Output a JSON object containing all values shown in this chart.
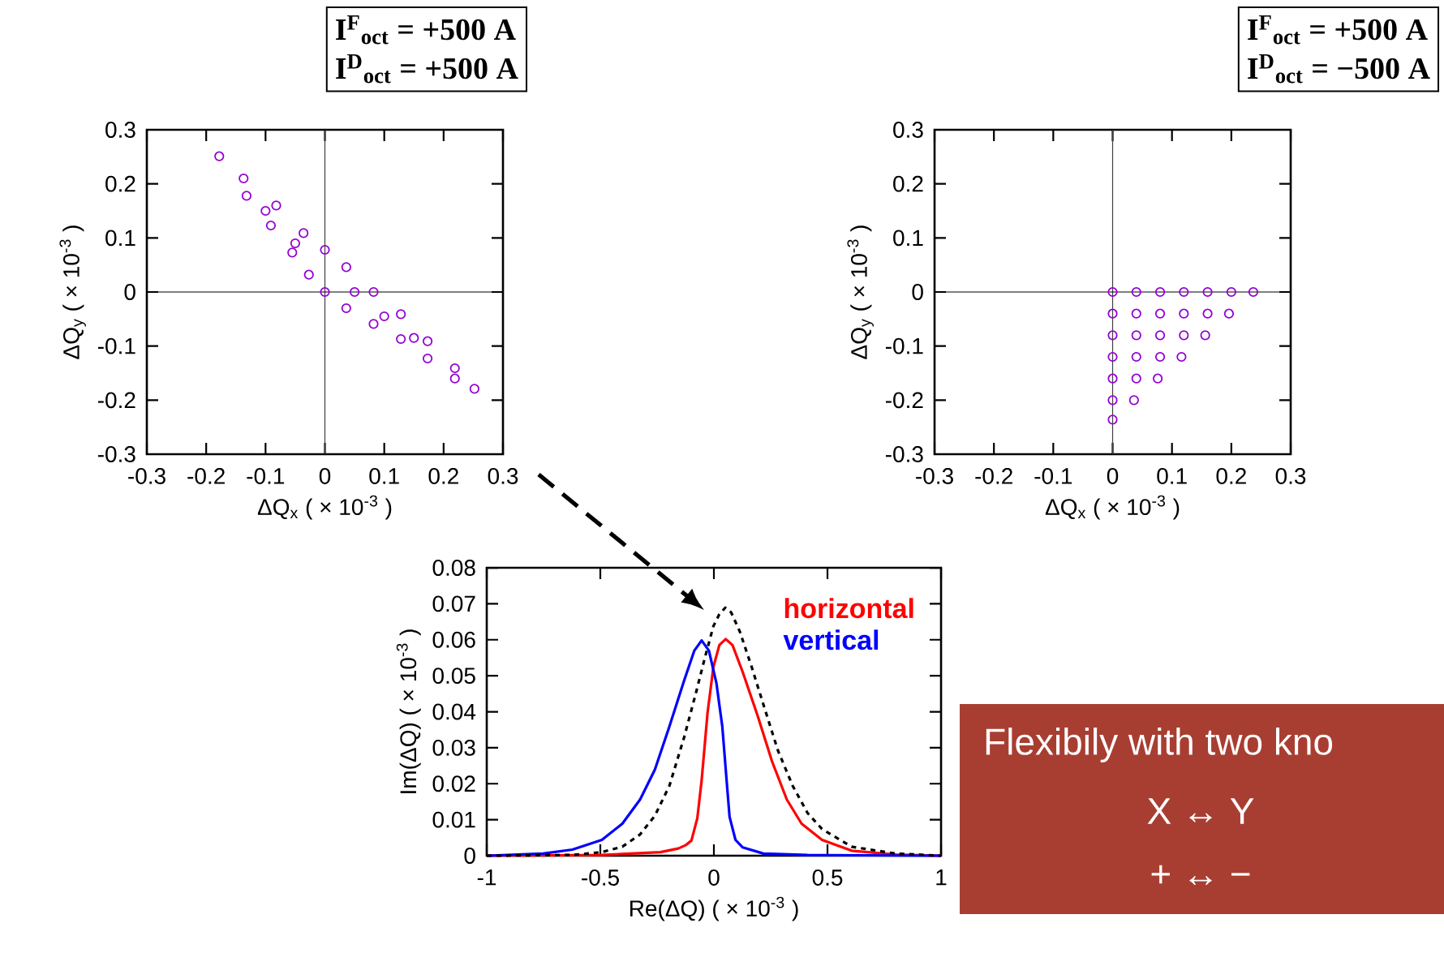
{
  "chart_data": [
    {
      "type": "scatter",
      "xlabel": "ΔQ$_{x}$  ( × 10$^{-3}$ )",
      "ylabel": "ΔQ$_{y}$  ( × 10$^{-3}$ )",
      "xlim": [
        -0.3,
        0.3
      ],
      "ylim": [
        -0.3,
        0.3
      ],
      "xticks": [
        -0.3,
        -0.2,
        -0.1,
        0,
        0.1,
        0.2,
        0.3
      ],
      "yticks": [
        -0.3,
        -0.2,
        -0.1,
        0,
        0.1,
        0.2,
        0.3
      ],
      "marker": "circle",
      "annotations": [
        "I$^{F}$$_{oct}$  =  +500 A",
        "I$^{D}$$_{oct}$  =  +500 A"
      ],
      "ref_lines": [
        {
          "axis": "x",
          "value": 0
        },
        {
          "axis": "y",
          "value": 0
        }
      ],
      "series": [
        {
          "color": "#9400d3",
          "x": [
            -0.178,
            -0.137,
            -0.082,
            -0.036,
            0.0,
            0.036,
            0.082,
            0.128,
            0.173,
            0.219,
            0.252,
            -0.132,
            -0.091,
            -0.055,
            -0.027,
            0.0,
            0.036,
            0.082,
            0.128,
            0.173,
            0.219,
            -0.1,
            -0.05,
            0.05,
            0.1,
            0.15
          ],
          "values": [
            0.251,
            0.21,
            0.16,
            0.109,
            0.078,
            0.046,
            0.0,
            -0.041,
            -0.091,
            -0.141,
            -0.179,
            0.178,
            0.123,
            0.073,
            0.032,
            0.0,
            -0.03,
            -0.059,
            -0.087,
            -0.123,
            -0.16,
            0.15,
            0.09,
            0.0,
            -0.045,
            -0.085
          ]
        }
      ]
    },
    {
      "type": "scatter",
      "xlabel": "ΔQ$_{x}$  ( × 10$^{-3}$ )",
      "ylabel": "ΔQ$_{y}$  ( × 10$^{-3}$ )",
      "xlim": [
        -0.3,
        0.3
      ],
      "ylim": [
        -0.3,
        0.3
      ],
      "xticks": [
        -0.3,
        -0.2,
        -0.1,
        0,
        0.1,
        0.2,
        0.3
      ],
      "yticks": [
        -0.3,
        -0.2,
        -0.1,
        0,
        0.1,
        0.2,
        0.3
      ],
      "marker": "circle",
      "annotations": [
        "I$^{F}$$_{oct}$  =  +500 A",
        "I$^{D}$$_{oct}$  =  −500 A"
      ],
      "ref_lines": [
        {
          "axis": "x",
          "value": 0
        },
        {
          "axis": "y",
          "value": 0
        }
      ],
      "series": [
        {
          "color": "#9400d3",
          "x": [
            0,
            0.04,
            0.08,
            0.12,
            0.16,
            0.2,
            0.237,
            0,
            0.04,
            0.08,
            0.12,
            0.16,
            0.196,
            0,
            0.04,
            0.08,
            0.12,
            0.156,
            0,
            0.04,
            0.08,
            0.116,
            0,
            0.04,
            0.076,
            0,
            0.036,
            0
          ],
          "values": [
            0,
            0,
            0,
            0,
            0,
            0,
            0,
            -0.04,
            -0.04,
            -0.04,
            -0.04,
            -0.04,
            -0.04,
            -0.08,
            -0.08,
            -0.08,
            -0.08,
            -0.08,
            -0.12,
            -0.12,
            -0.12,
            -0.12,
            -0.16,
            -0.16,
            -0.16,
            -0.2,
            -0.2,
            -0.236
          ]
        }
      ]
    },
    {
      "type": "line",
      "xlabel": "Re(ΔQ)  ( × 10$^{-3}$ )",
      "ylabel": "Im(ΔQ)  ( × 10$^{-3}$ )",
      "xlim": [
        -1,
        1
      ],
      "ylim": [
        0,
        0.08
      ],
      "xticks": [
        -1,
        -0.5,
        0,
        0.5,
        1
      ],
      "yticks": [
        0,
        0.01,
        0.02,
        0.03,
        0.04,
        0.05,
        0.06,
        0.07,
        0.08
      ],
      "marker": "none",
      "series": [
        {
          "name": "horizontal",
          "color": "#ff0000",
          "line_style": "solid",
          "x": [
            -1.0,
            -0.493,
            -0.235,
            -0.157,
            -0.125,
            -0.099,
            -0.073,
            -0.054,
            -0.028,
            -0.002,
            0.024,
            0.052,
            0.082,
            0.127,
            0.192,
            0.256,
            0.321,
            0.386,
            0.476,
            0.606,
            0.8,
            1.0
          ],
          "values": [
            0,
            0.0002,
            0.001,
            0.002,
            0.0029,
            0.0042,
            0.0104,
            0.0209,
            0.0397,
            0.0525,
            0.0585,
            0.0602,
            0.0585,
            0.051,
            0.039,
            0.0262,
            0.0156,
            0.0089,
            0.0044,
            0.0014,
            0.0003,
            0
          ]
        },
        {
          "name": "vertical",
          "color": "#0000ff",
          "line_style": "solid",
          "x": [
            -1.0,
            -0.752,
            -0.623,
            -0.493,
            -0.403,
            -0.325,
            -0.26,
            -0.196,
            -0.131,
            -0.086,
            -0.054,
            -0.022,
            0.011,
            0.037,
            0.056,
            0.069,
            0.095,
            0.127,
            0.218,
            0.412,
            1.0
          ],
          "values": [
            0,
            0.0006,
            0.0017,
            0.0044,
            0.0089,
            0.0156,
            0.0239,
            0.0359,
            0.0487,
            0.057,
            0.0598,
            0.057,
            0.048,
            0.0359,
            0.0209,
            0.0108,
            0.0044,
            0.0023,
            0.0006,
            0.0002,
            0
          ]
        },
        {
          "color": "#000000",
          "line_style": "dashed",
          "x": [
            -1.0,
            -0.623,
            -0.493,
            -0.403,
            -0.325,
            -0.26,
            -0.196,
            -0.131,
            -0.08,
            -0.041,
            -0.002,
            0.024,
            0.05,
            0.076,
            0.114,
            0.166,
            0.218,
            0.282,
            0.347,
            0.412,
            0.476,
            0.606,
            0.8,
            1.0
          ],
          "values": [
            0,
            0.0002,
            0.001,
            0.0025,
            0.0059,
            0.0111,
            0.0194,
            0.0329,
            0.045,
            0.0547,
            0.0638,
            0.0671,
            0.0689,
            0.0676,
            0.0623,
            0.0525,
            0.042,
            0.0292,
            0.0194,
            0.0119,
            0.0074,
            0.0025,
            0.0006,
            0
          ]
        }
      ]
    },
    {
      "type": "other",
      "title": "Flexibily with two kno",
      "color": "#a83e32",
      "annotations": [
        "X ↔ Y",
        "+ ↔ −"
      ]
    }
  ]
}
